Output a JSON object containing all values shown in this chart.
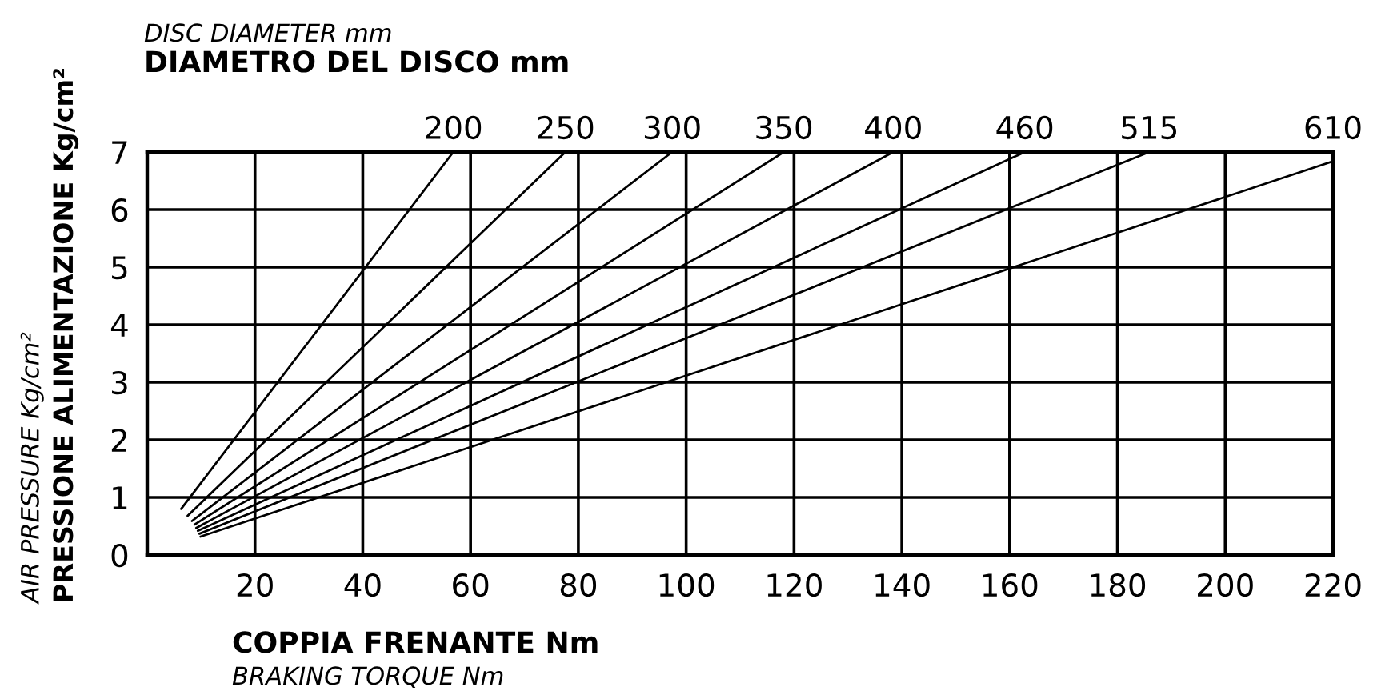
{
  "chart_data": {
    "type": "line",
    "title": "DIAMETRO DEL DISCO mm",
    "subtitle": "DISC DIAMETER mm",
    "xlabel": "COPPIA FRENANTE Nm",
    "ylabel": "PRESSIONE ALIMENTAZIONE Kg/cm²",
    "annotations": [
      "AIR PRESSURE Kg/cm²",
      "BRAKING TORQUE Nm"
    ],
    "series": [
      {
        "name": "200",
        "color": "#000000",
        "x": [
          6.3,
          56.8
        ],
        "values": [
          0.8,
          7
        ]
      },
      {
        "name": "250",
        "color": "#000000",
        "x": [
          7.5,
          77.6
        ],
        "values": [
          0.68,
          7
        ]
      },
      {
        "name": "300",
        "color": "#000000",
        "x": [
          8.3,
          97.4
        ],
        "values": [
          0.59,
          7
        ]
      },
      {
        "name": "350",
        "color": "#000000",
        "x": [
          8.8,
          118.1
        ],
        "values": [
          0.53,
          7
        ]
      },
      {
        "name": "400",
        "color": "#000000",
        "x": [
          9.1,
          138.4
        ],
        "values": [
          0.47,
          7
        ]
      },
      {
        "name": "460",
        "color": "#000000",
        "x": [
          9.4,
          162.8
        ],
        "values": [
          0.42,
          7
        ]
      },
      {
        "name": "515",
        "color": "#000000",
        "x": [
          9.7,
          185.9
        ],
        "values": [
          0.37,
          7
        ]
      },
      {
        "name": "610",
        "color": "#000000",
        "x": [
          9.9,
          220
        ],
        "values": [
          0.32,
          6.84
        ]
      }
    ],
    "xlim": [
      0,
      220
    ],
    "xticks": [
      20,
      40,
      60,
      80,
      100,
      120,
      140,
      160,
      180,
      200,
      220
    ],
    "ylim": [
      0,
      7
    ],
    "yticks": [
      0,
      1,
      2,
      3,
      4,
      5,
      6,
      7
    ],
    "grid": true,
    "line_style": "solid"
  }
}
